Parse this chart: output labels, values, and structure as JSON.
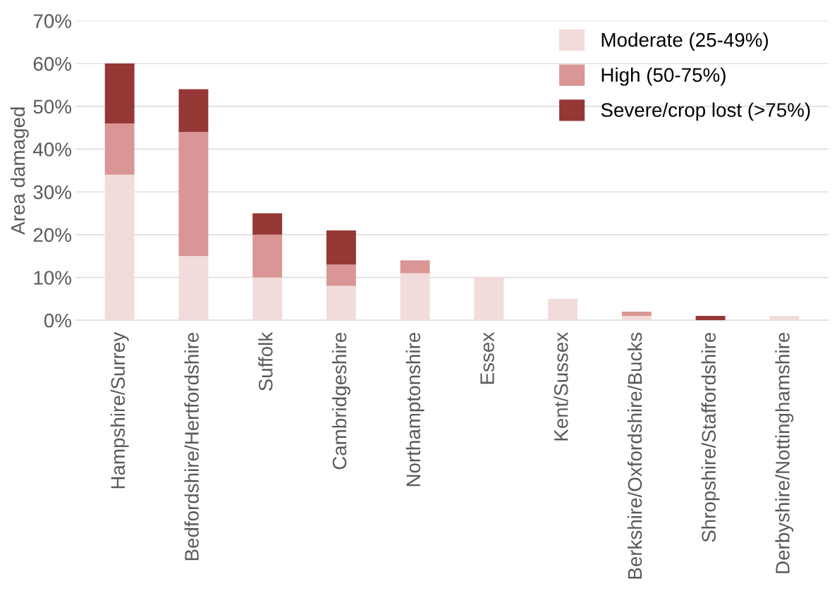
{
  "chart_data": {
    "type": "bar",
    "stacked": true,
    "ylabel": "Area damaged",
    "categories": [
      "Hampshire/Surrey",
      "Bedfordshire/Hertfordshire",
      "Suffolk",
      "Cambridgeshire",
      "Northamptonshire",
      "Essex",
      "Kent/Sussex",
      "Berkshire/Oxfordshire/Bucks",
      "Shropshire/Staffordshire",
      "Derbyshire/Nottinghamshire"
    ],
    "series": [
      {
        "name": "Moderate (25-49%)",
        "color": "#f2dcdb",
        "values": [
          34,
          15,
          10,
          8,
          11,
          10,
          5,
          1,
          0,
          1
        ]
      },
      {
        "name": "High (50-75%)",
        "color": "#d99694",
        "values": [
          12,
          29,
          10,
          5,
          3,
          0,
          0,
          1,
          0,
          0
        ]
      },
      {
        "name": "Severe/crop lost (>75%)",
        "color": "#953735",
        "values": [
          14,
          10,
          5,
          8,
          0,
          0,
          0,
          0,
          1,
          0
        ]
      }
    ],
    "ylim": [
      0,
      70
    ],
    "yticks": [
      {
        "value": 0,
        "label": "0%"
      },
      {
        "value": 10,
        "label": "10%"
      },
      {
        "value": 20,
        "label": "20%"
      },
      {
        "value": 30,
        "label": "30%"
      },
      {
        "value": 40,
        "label": "40%"
      },
      {
        "value": 50,
        "label": "50%"
      },
      {
        "value": 60,
        "label": "60%"
      },
      {
        "value": 70,
        "label": "70%"
      }
    ],
    "grid": "y",
    "legend": "top right"
  }
}
